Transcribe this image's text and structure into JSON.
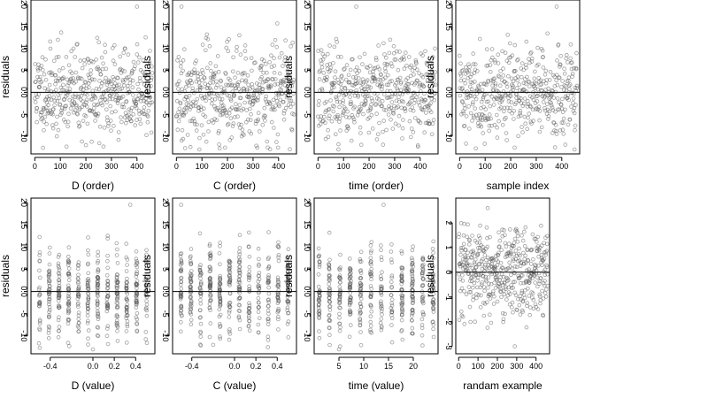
{
  "chart_data": [
    {
      "type": "scatter",
      "xlabel": "D (order)",
      "ylabel": "residuals",
      "xlim": [
        -15,
        470
      ],
      "ylim": [
        -14,
        21
      ],
      "xticks": [
        0,
        100,
        200,
        300,
        400
      ],
      "yticks": [
        -10,
        -5,
        0,
        5,
        10,
        15,
        20
      ],
      "xtick_labels": [
        "0",
        "100",
        "200",
        "300",
        "400"
      ],
      "ytick_labels": [
        "-10",
        "-5",
        "0.0",
        "5",
        "10",
        "15",
        "20"
      ],
      "hline": 0,
      "pattern": "order",
      "seed": 11,
      "n": 460,
      "series": [
        {
          "n": 460,
          "range": [
            0,
            460
          ],
          "spread": 5,
          "extreme": [
            [
              400,
              19.5
            ],
            [
              200,
              -12
            ]
          ]
        }
      ]
    },
    {
      "type": "scatter",
      "xlabel": "C (order)",
      "ylabel": "residuals",
      "xlim": [
        -15,
        470
      ],
      "ylim": [
        -14,
        21
      ],
      "xticks": [
        0,
        100,
        200,
        300,
        400
      ],
      "yticks": [
        -10,
        -5,
        0,
        5,
        10,
        15,
        20
      ],
      "xtick_labels": [
        "0",
        "100",
        "200",
        "300",
        "400"
      ],
      "ytick_labels": [
        "-10",
        "-5",
        "0.0",
        "5",
        "10",
        "15",
        "20"
      ],
      "hline": 0,
      "pattern": "order",
      "seed": 23,
      "n": 460,
      "series": [
        {
          "n": 460,
          "range": [
            0,
            460
          ],
          "spread": 5,
          "extreme": [
            [
              20,
              19.5
            ],
            [
              90,
              -13
            ]
          ]
        }
      ]
    },
    {
      "type": "scatter",
      "xlabel": "time (order)",
      "ylabel": "residuals",
      "xlim": [
        -15,
        470
      ],
      "ylim": [
        -14,
        21
      ],
      "xticks": [
        0,
        100,
        200,
        300,
        400
      ],
      "yticks": [
        -10,
        -5,
        0,
        5,
        10,
        15,
        20
      ],
      "xtick_labels": [
        "0",
        "100",
        "200",
        "300",
        "400"
      ],
      "ytick_labels": [
        "-10",
        "-5",
        "0.0",
        "5",
        "10",
        "15",
        "20"
      ],
      "hline": 0,
      "pattern": "order",
      "seed": 37,
      "n": 460,
      "series": [
        {
          "n": 460,
          "range": [
            0,
            460
          ],
          "spread": 5,
          "extreme": [
            [
              150,
              19.5
            ],
            [
              80,
              -13
            ]
          ]
        }
      ]
    },
    {
      "type": "scatter",
      "xlabel": "sample index",
      "ylabel": "residuals",
      "xlim": [
        -15,
        470
      ],
      "ylim": [
        -14,
        21
      ],
      "xticks": [
        0,
        100,
        200,
        300,
        400
      ],
      "yticks": [
        -10,
        -5,
        0,
        5,
        10,
        15,
        20
      ],
      "xtick_labels": [
        "0",
        "100",
        "200",
        "300",
        "400"
      ],
      "ytick_labels": [
        "-10",
        "-5",
        "0.0",
        "5",
        "10",
        "15",
        "20"
      ],
      "hline": 0,
      "pattern": "order",
      "seed": 41,
      "n": 460,
      "series": [
        {
          "n": 460,
          "range": [
            0,
            460
          ],
          "spread": 5,
          "extreme": [
            [
              380,
              19.5
            ],
            [
              450,
              -13
            ]
          ]
        }
      ]
    },
    {
      "type": "scatter",
      "xlabel": "D (value)",
      "ylabel": "residuals",
      "xlim": [
        -0.58,
        0.58
      ],
      "ylim": [
        -14,
        21
      ],
      "xticks": [
        -0.4,
        0.0,
        0.2,
        0.4
      ],
      "yticks": [
        -10,
        -5,
        0,
        5,
        10,
        15,
        20
      ],
      "xtick_labels": [
        "-0.4",
        "0.0",
        "0.2",
        "0.4"
      ],
      "ytick_labels": [
        "-10",
        "-5",
        "0.0",
        "5",
        "10",
        "15",
        "20"
      ],
      "hline": 0,
      "pattern": "value",
      "seed": 53,
      "n": 460,
      "series": [
        {
          "n": 460,
          "range": [
            -0.5,
            0.5
          ],
          "spread": 5,
          "extreme": [
            [
              0.35,
              19.5
            ],
            [
              0.0,
              -13
            ]
          ]
        }
      ]
    },
    {
      "type": "scatter",
      "xlabel": "C (value)",
      "ylabel": "residuals",
      "xlim": [
        -0.58,
        0.58
      ],
      "ylim": [
        -14,
        21
      ],
      "xticks": [
        -0.4,
        0.0,
        0.2,
        0.4
      ],
      "yticks": [
        -10,
        -5,
        0,
        5,
        10,
        15,
        20
      ],
      "xtick_labels": [
        "-0.4",
        "0.0",
        "0.2",
        "0.4"
      ],
      "ytick_labels": [
        "-10",
        "-5",
        "0.0",
        "5",
        "10",
        "15",
        "20"
      ],
      "hline": 0,
      "pattern": "value",
      "seed": 67,
      "n": 460,
      "series": [
        {
          "n": 460,
          "range": [
            -0.5,
            0.5
          ],
          "spread": 5,
          "extreme": [
            [
              -0.5,
              19.5
            ],
            [
              -0.2,
              -12
            ]
          ]
        }
      ]
    },
    {
      "type": "scatter",
      "xlabel": "time (value)",
      "ylabel": "residuals",
      "xlim": [
        0,
        25
      ],
      "ylim": [
        -14,
        21
      ],
      "xticks": [
        5,
        10,
        15,
        20
      ],
      "yticks": [
        -10,
        -5,
        0,
        5,
        10,
        15,
        20
      ],
      "xtick_labels": [
        "5",
        "10",
        "15",
        "20"
      ],
      "ytick_labels": [
        "-10",
        "-5",
        "0.0",
        "5",
        "10",
        "15",
        "20"
      ],
      "hline": 0,
      "pattern": "value",
      "seed": 79,
      "n": 460,
      "series": [
        {
          "n": 460,
          "range": [
            1,
            24
          ],
          "spread": 5,
          "extreme": [
            [
              14,
              19.5
            ],
            [
              5,
              -13
            ]
          ]
        }
      ]
    },
    {
      "type": "scatter",
      "xlabel": "randam example",
      "ylabel": "residuals",
      "xlim": [
        -15,
        470
      ],
      "ylim": [
        -3.3,
        3
      ],
      "xticks": [
        0,
        100,
        200,
        300,
        400
      ],
      "yticks": [
        -3,
        -2,
        -1,
        0,
        1,
        2
      ],
      "xtick_labels": [
        "0",
        "100",
        "200",
        "300",
        "400"
      ],
      "ytick_labels": [
        "-3",
        "-2",
        "-1",
        "0",
        "1",
        "2"
      ],
      "hline": 0,
      "pattern": "order",
      "seed": 97,
      "n": 460,
      "series": [
        {
          "n": 460,
          "range": [
            0,
            460
          ],
          "spread": 1,
          "extreme": [
            [
              290,
              -3.0
            ],
            [
              150,
              2.6
            ]
          ]
        }
      ]
    }
  ]
}
